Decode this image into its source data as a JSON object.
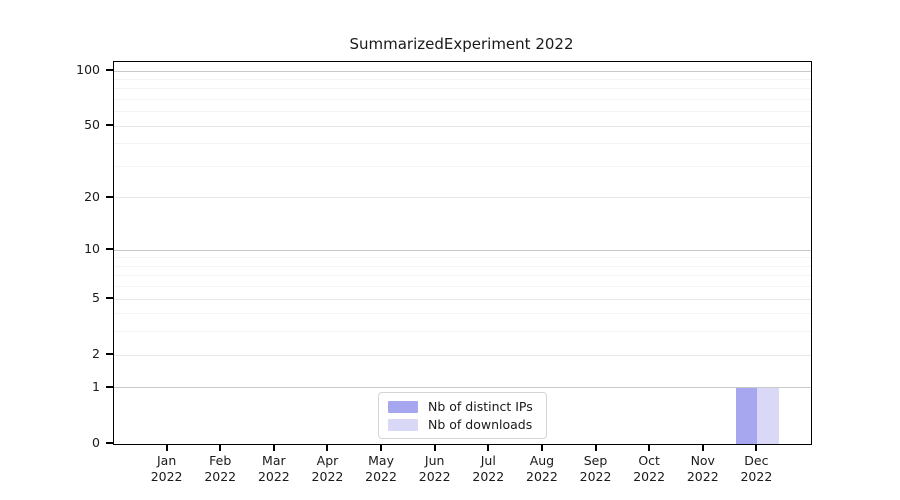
{
  "chart_data": {
    "type": "bar",
    "title": "SummarizedExperiment 2022",
    "categories": [
      "Jan 2022",
      "Feb 2022",
      "Mar 2022",
      "Apr 2022",
      "May 2022",
      "Jun 2022",
      "Jul 2022",
      "Aug 2022",
      "Sep 2022",
      "Oct 2022",
      "Nov 2022",
      "Dec 2022"
    ],
    "series": [
      {
        "name": "Nb of distinct IPs",
        "values": [
          0,
          0,
          0,
          0,
          0,
          0,
          0,
          0,
          0,
          0,
          0,
          1
        ],
        "color": "#a7a7f0"
      },
      {
        "name": "Nb of downloads",
        "values": [
          0,
          0,
          0,
          0,
          0,
          0,
          0,
          0,
          0,
          0,
          0,
          1
        ],
        "color": "#d9d9f7"
      }
    ],
    "xlabel": "",
    "ylabel": "",
    "yscale": "log1p",
    "ylim": [
      0,
      100
    ],
    "y_major_ticks": [
      0,
      1,
      2,
      5,
      10,
      20,
      50,
      100
    ],
    "y_minor_ticks": [
      3,
      4,
      6,
      7,
      8,
      9,
      30,
      40,
      60,
      70,
      80,
      90
    ],
    "grid": "horizontal-only",
    "legend_position": "lower-center"
  },
  "legend": {
    "items": [
      {
        "label": "Nb of distinct IPs"
      },
      {
        "label": "Nb of downloads"
      }
    ]
  },
  "colors": {
    "bar_distinct_ips": "#a7a7f0",
    "bar_downloads": "#d9d9f7",
    "grid_decade": "#c8c8c8",
    "grid_major": "#e7e7e7",
    "grid_minor": "#f3f3f3",
    "axis": "#000000",
    "legend_border": "#d5d5d5",
    "text": "#1a1a1a"
  }
}
